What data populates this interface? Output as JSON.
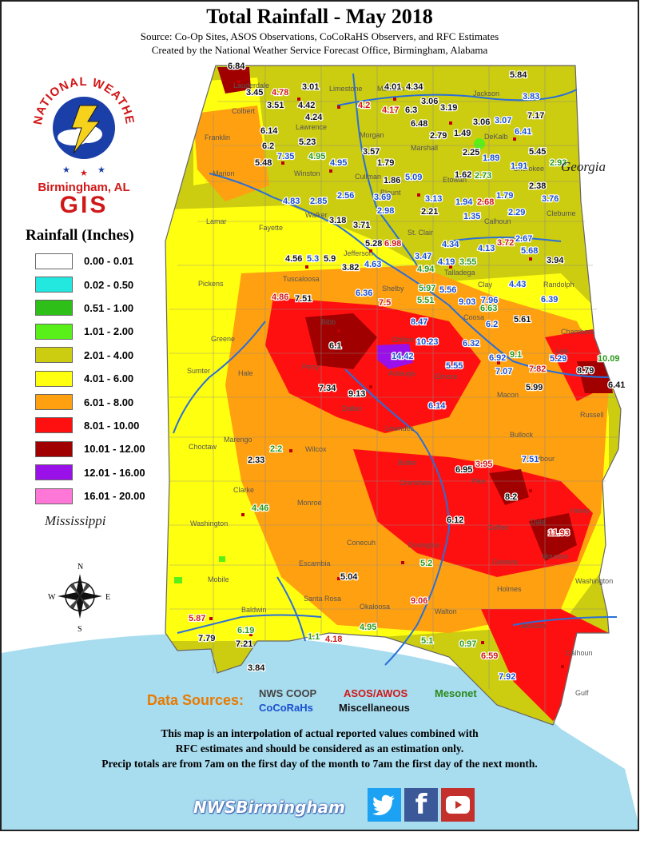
{
  "header": {
    "title": "Total Rainfall - May 2018",
    "source_line": "Source: Co-Op Sites, ASOS Observations, CoCoRaHS Observers, and RFC Estimates",
    "created_line": "Created by the National Weather Service Forecast Office, Birmingham, Alabama"
  },
  "logo": {
    "ring_text": "NATIONAL WEATHER SERVICE",
    "office": "Birmingham, AL",
    "gis": "GIS"
  },
  "legend": {
    "title": "Rainfall (Inches)",
    "bins": [
      {
        "label": "0.00 - 0.01",
        "color": "#ffffff"
      },
      {
        "label": "0.02 - 0.50",
        "color": "#22e8e0"
      },
      {
        "label": "0.51 - 1.00",
        "color": "#2ec018"
      },
      {
        "label": "1.01 - 2.00",
        "color": "#58f018"
      },
      {
        "label": "2.01 - 4.00",
        "color": "#cccc10"
      },
      {
        "label": "4.01 - 6.00",
        "color": "#ffff10"
      },
      {
        "label": "6.01 - 8.00",
        "color": "#ffa010"
      },
      {
        "label": "8.01 - 10.00",
        "color": "#ff1010"
      },
      {
        "label": "10.01 - 12.00",
        "color": "#a00000"
      },
      {
        "label": "12.01 - 16.00",
        "color": "#9a10e8"
      },
      {
        "label": "16.01 - 20.00",
        "color": "#ff78d8"
      }
    ]
  },
  "neighbors": {
    "georgia": "Georgia",
    "mississippi": "Mississippi"
  },
  "compass": {
    "n": "N",
    "s": "S",
    "e": "E",
    "w": "W"
  },
  "map_values": [
    {
      "v": "6.84",
      "k": "coop"
    },
    {
      "v": "3.45",
      "k": "coop"
    },
    {
      "v": "4.78",
      "k": "asos"
    },
    {
      "v": "3.01",
      "k": "coop"
    },
    {
      "v": "3.51",
      "k": "coop"
    },
    {
      "v": "4.42",
      "k": "coop"
    },
    {
      "v": "4.24",
      "k": "coop"
    },
    {
      "v": "4.2",
      "k": "asos"
    },
    {
      "v": "4.01",
      "k": "coop"
    },
    {
      "v": "4.34",
      "k": "coop"
    },
    {
      "v": "4.17",
      "k": "asos"
    },
    {
      "v": "6.3",
      "k": "coop"
    },
    {
      "v": "3.06",
      "k": "coop"
    },
    {
      "v": "3.19",
      "k": "coop"
    },
    {
      "v": "5.84",
      "k": "coop"
    },
    {
      "v": "3.83",
      "k": "cocorahs"
    },
    {
      "v": "7.17",
      "k": "coop"
    },
    {
      "v": "3.07",
      "k": "cocorahs"
    },
    {
      "v": "6.48",
      "k": "coop"
    },
    {
      "v": "3.06",
      "k": "coop"
    },
    {
      "v": "6.41",
      "k": "cocorahs"
    },
    {
      "v": "6.14",
      "k": "coop"
    },
    {
      "v": "5.23",
      "k": "coop"
    },
    {
      "v": "3.57",
      "k": "coop"
    },
    {
      "v": "2.79",
      "k": "coop"
    },
    {
      "v": "1.49",
      "k": "coop"
    },
    {
      "v": "5.45",
      "k": "coop"
    },
    {
      "v": "6.2",
      "k": "coop"
    },
    {
      "v": "7.35",
      "k": "cocorahs"
    },
    {
      "v": "4.95",
      "k": "meso"
    },
    {
      "v": "2.25",
      "k": "coop"
    },
    {
      "v": "1.89",
      "k": "cocorahs"
    },
    {
      "v": "2.93",
      "k": "meso"
    },
    {
      "v": "5.48",
      "k": "coop"
    },
    {
      "v": "4.95",
      "k": "cocorahs"
    },
    {
      "v": "1.79",
      "k": "coop"
    },
    {
      "v": "1.91",
      "k": "cocorahs"
    },
    {
      "v": "1.86",
      "k": "coop"
    },
    {
      "v": "5.09",
      "k": "cocorahs"
    },
    {
      "v": "1.62",
      "k": "coop"
    },
    {
      "v": "2.73",
      "k": "meso"
    },
    {
      "v": "2.38",
      "k": "coop"
    },
    {
      "v": "4.83",
      "k": "cocorahs"
    },
    {
      "v": "2.85",
      "k": "cocorahs"
    },
    {
      "v": "2.56",
      "k": "cocorahs"
    },
    {
      "v": "3.69",
      "k": "cocorahs"
    },
    {
      "v": "3.13",
      "k": "cocorahs"
    },
    {
      "v": "1.94",
      "k": "cocorahs"
    },
    {
      "v": "2.68",
      "k": "asos"
    },
    {
      "v": "1.79",
      "k": "cocorahs"
    },
    {
      "v": "3.76",
      "k": "cocorahs"
    },
    {
      "v": "2.98",
      "k": "cocorahs"
    },
    {
      "v": "2.21",
      "k": "coop"
    },
    {
      "v": "1.35",
      "k": "cocorahs"
    },
    {
      "v": "2.29",
      "k": "cocorahs"
    },
    {
      "v": "3.18",
      "k": "coop"
    },
    {
      "v": "3.71",
      "k": "coop"
    },
    {
      "v": "5.28",
      "k": "coop"
    },
    {
      "v": "6.98",
      "k": "asos"
    },
    {
      "v": "4.34",
      "k": "cocorahs"
    },
    {
      "v": "4.13",
      "k": "cocorahs"
    },
    {
      "v": "3.72",
      "k": "asos"
    },
    {
      "v": "2.67",
      "k": "cocorahs"
    },
    {
      "v": "5.68",
      "k": "cocorahs"
    },
    {
      "v": "4.56",
      "k": "coop"
    },
    {
      "v": "5.3",
      "k": "cocorahs"
    },
    {
      "v": "5.9",
      "k": "coop"
    },
    {
      "v": "3.82",
      "k": "coop"
    },
    {
      "v": "4.63",
      "k": "cocorahs"
    },
    {
      "v": "3.47",
      "k": "cocorahs"
    },
    {
      "v": "4.94",
      "k": "meso"
    },
    {
      "v": "4.19",
      "k": "cocorahs"
    },
    {
      "v": "3.55",
      "k": "meso"
    },
    {
      "v": "3.94",
      "k": "coop"
    },
    {
      "v": "6.36",
      "k": "cocorahs"
    },
    {
      "v": "5.97",
      "k": "meso"
    },
    {
      "v": "5.56",
      "k": "cocorahs"
    },
    {
      "v": "4.43",
      "k": "cocorahs"
    },
    {
      "v": "4.86",
      "k": "asos"
    },
    {
      "v": "7.51",
      "k": "coop"
    },
    {
      "v": "7.5",
      "k": "asos"
    },
    {
      "v": "5.51",
      "k": "meso"
    },
    {
      "v": "9.03",
      "k": "cocorahs"
    },
    {
      "v": "7.96",
      "k": "cocorahs"
    },
    {
      "v": "6.39",
      "k": "cocorahs"
    },
    {
      "v": "6.63",
      "k": "meso"
    },
    {
      "v": "8.47",
      "k": "cocorahs"
    },
    {
      "v": "5.61",
      "k": "coop"
    },
    {
      "v": "6.2",
      "k": "cocorahs"
    },
    {
      "v": "6.1",
      "k": "coop"
    },
    {
      "v": "10.23",
      "k": "cocorahs"
    },
    {
      "v": "6.32",
      "k": "cocorahs"
    },
    {
      "v": "14.42",
      "k": "cocorahs"
    },
    {
      "v": "6.92",
      "k": "cocorahs"
    },
    {
      "v": "9.1",
      "k": "meso"
    },
    {
      "v": "5.29",
      "k": "cocorahs"
    },
    {
      "v": "10.09",
      "k": "meso"
    },
    {
      "v": "5.55",
      "k": "cocorahs"
    },
    {
      "v": "7.07",
      "k": "cocorahs"
    },
    {
      "v": "7.82",
      "k": "asos"
    },
    {
      "v": "8.79",
      "k": "coop"
    },
    {
      "v": "7.34",
      "k": "coop"
    },
    {
      "v": "9.13",
      "k": "coop"
    },
    {
      "v": "5.99",
      "k": "coop"
    },
    {
      "v": "6.41",
      "k": "coop"
    },
    {
      "v": "6.14",
      "k": "cocorahs"
    },
    {
      "v": "2.2",
      "k": "meso"
    },
    {
      "v": "2.33",
      "k": "coop"
    },
    {
      "v": "6.95",
      "k": "coop"
    },
    {
      "v": "3.95",
      "k": "asos"
    },
    {
      "v": "7.51",
      "k": "cocorahs"
    },
    {
      "v": "8.2",
      "k": "coop"
    },
    {
      "v": "4.46",
      "k": "meso"
    },
    {
      "v": "6.12",
      "k": "coop"
    },
    {
      "v": "11.93",
      "k": "asos"
    },
    {
      "v": "5.2",
      "k": "meso"
    },
    {
      "v": "5.04",
      "k": "coop"
    },
    {
      "v": "9.06",
      "k": "asos"
    },
    {
      "v": "5.87",
      "k": "asos"
    },
    {
      "v": "6.19",
      "k": "meso"
    },
    {
      "v": "4.95",
      "k": "meso"
    },
    {
      "v": "7.79",
      "k": "coop"
    },
    {
      "v": "7.21",
      "k": "coop"
    },
    {
      "v": "1.1",
      "k": "meso"
    },
    {
      "v": "4.18",
      "k": "asos"
    },
    {
      "v": "5.1",
      "k": "meso"
    },
    {
      "v": "0.97",
      "k": "meso"
    },
    {
      "v": "6.59",
      "k": "asos"
    },
    {
      "v": "3.84",
      "k": "coop"
    },
    {
      "v": "7.92",
      "k": "cocorahs"
    }
  ],
  "counties": [
    "Lauderdale",
    "Limestone",
    "Madison",
    "Jackson",
    "Colbert",
    "Lawrence",
    "Morgan",
    "Marshall",
    "DeKalb",
    "Franklin",
    "Cullman",
    "Etowah",
    "Cherokee",
    "Marion",
    "Winston",
    "Blount",
    "Lamar",
    "Fayette",
    "Walker",
    "St. Clair",
    "Calhoun",
    "Cleburne",
    "Jefferson",
    "Talladega",
    "Pickens",
    "Tuscaloosa",
    "Shelby",
    "Clay",
    "Randolph",
    "Bibb",
    "Coosa",
    "Chilton",
    "Chambers",
    "Greene",
    "Hale",
    "Perry",
    "Autauga",
    "Elmore",
    "Lee",
    "Sumter",
    "Dallas",
    "Macon",
    "Russell",
    "Marengo",
    "Lowndes",
    "Bullock",
    "Choctaw",
    "Wilcox",
    "Butler",
    "Barbour",
    "Clarke",
    "Monroe",
    "Crenshaw",
    "Pike",
    "Coffee",
    "Dale",
    "Henry",
    "Washington",
    "Conecuh",
    "Covington",
    "Geneva",
    "Houston",
    "Escambia",
    "Mobile",
    "Baldwin",
    "Santa Rosa",
    "Walton",
    "Holmes",
    "Jackson",
    "Washington",
    "Calhoun",
    "Gulf",
    "Okaloosa"
  ],
  "data_sources": {
    "title": "Data Sources:",
    "coop": "NWS COOP",
    "asos": "ASOS/AWOS",
    "meso": "Mesonet",
    "cocorahs": "CoCoRaHs",
    "misc": "Miscellaneous"
  },
  "notes": [
    "This map is an interpolation of actual reported values combined with",
    "RFC estimates and should be considered as an estimation only.",
    "Precip totals are from 7am on the first day of the month to 7am the first day of the next month."
  ],
  "footer": {
    "handle": "NWSBirmingham",
    "twitter": "twitter-icon",
    "facebook": "facebook-icon",
    "youtube": "youtube-icon"
  }
}
